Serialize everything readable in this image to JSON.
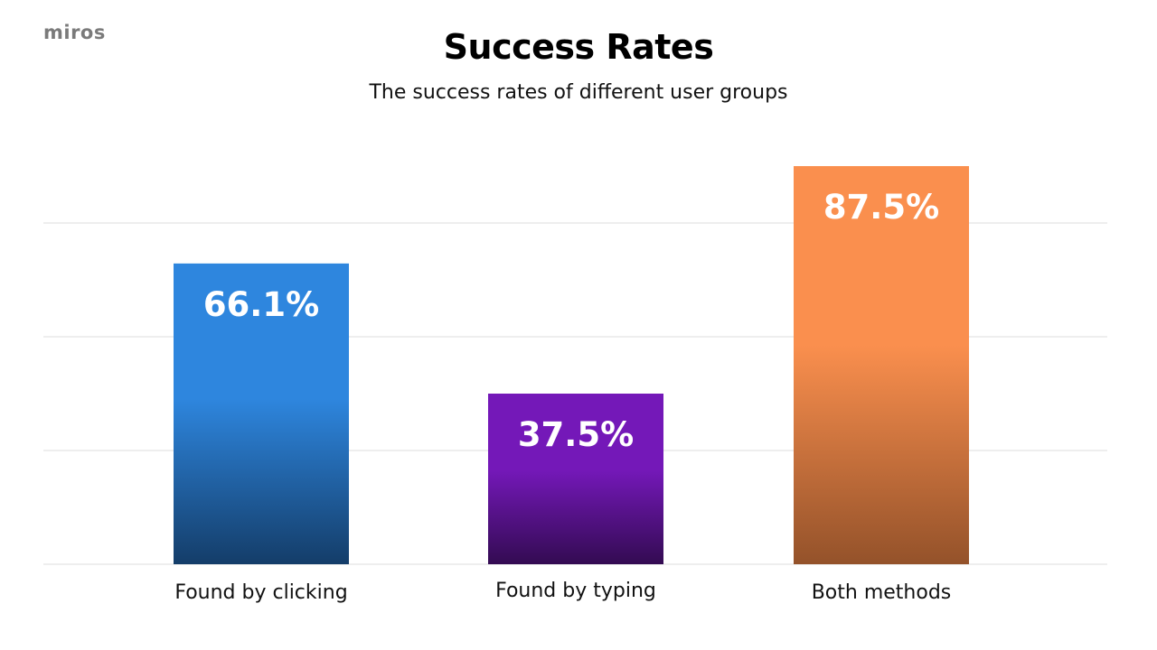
{
  "logo": {
    "text": "miros"
  },
  "chart_data": {
    "type": "bar",
    "title": "Success Rates",
    "subtitle": "The success rates of different user groups",
    "categories": [
      "Found by clicking",
      "Found by typing",
      "Both methods"
    ],
    "values": [
      66.1,
      37.5,
      87.5
    ],
    "value_labels": [
      "66.1%",
      "37.5%",
      "87.5%"
    ],
    "ylim": [
      0,
      100
    ],
    "ticks": [
      0,
      25,
      50,
      75,
      100
    ],
    "grid": true,
    "xlabel": "",
    "ylabel": "",
    "bar_colors": [
      {
        "top": "#2e86de",
        "bottom": "#143d69"
      },
      {
        "top": "#7418b8",
        "bottom": "#330b52"
      },
      {
        "top": "#fa8f4e",
        "bottom": "#94522a"
      }
    ],
    "label_color": "#ffffff",
    "gridline_color": "#dddddd"
  }
}
